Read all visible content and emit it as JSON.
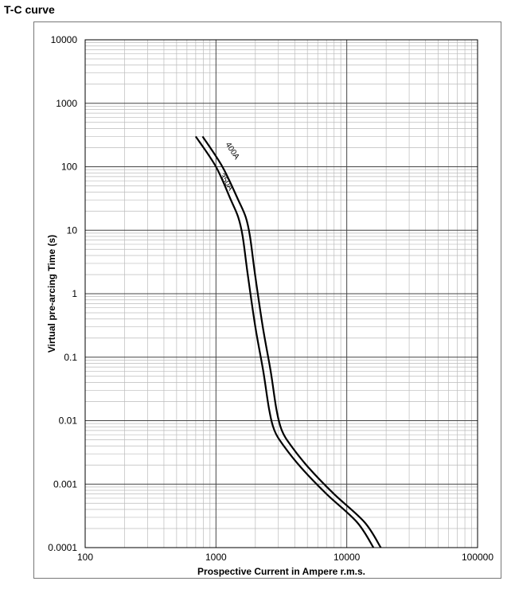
{
  "page": {
    "title": "T-C curve"
  },
  "chart_data": {
    "type": "line",
    "title": "",
    "xlabel": "Prospective Current in Ampere r.m.s.",
    "ylabel": "Virtual pre-arcing Time (s)",
    "xscale": "log",
    "yscale": "log",
    "xlim": [
      100,
      100000
    ],
    "ylim": [
      0.0001,
      10000
    ],
    "xticks": [
      "100",
      "1000",
      "10000",
      "100000"
    ],
    "yticks": [
      "0.0001",
      "0.001",
      "0.01",
      "0.1",
      "1",
      "10",
      "100",
      "1000",
      "10000"
    ],
    "grid": true,
    "legend": "none",
    "series": [
      {
        "name": "350A",
        "points": [
          [
            700,
            300
          ],
          [
            1000,
            100
          ],
          [
            1300,
            30
          ],
          [
            1480,
            16
          ],
          [
            1600,
            8
          ],
          [
            1750,
            2
          ],
          [
            2000,
            0.3
          ],
          [
            2300,
            0.06
          ],
          [
            2550,
            0.015
          ],
          [
            2800,
            0.007
          ],
          [
            3300,
            0.004
          ],
          [
            4500,
            0.0018
          ],
          [
            7000,
            0.0007
          ],
          [
            12000,
            0.00025
          ],
          [
            16000,
            0.0001
          ]
        ]
      },
      {
        "name": "400A",
        "points": [
          [
            790,
            300
          ],
          [
            1120,
            100
          ],
          [
            1480,
            30
          ],
          [
            1690,
            16
          ],
          [
            1820,
            8
          ],
          [
            1990,
            2
          ],
          [
            2280,
            0.3
          ],
          [
            2620,
            0.06
          ],
          [
            2900,
            0.015
          ],
          [
            3190,
            0.007
          ],
          [
            3760,
            0.004
          ],
          [
            5130,
            0.0018
          ],
          [
            7980,
            0.0007
          ],
          [
            13700,
            0.00025
          ],
          [
            18200,
            0.0001
          ]
        ]
      }
    ],
    "annotations": [
      "350A",
      "400A"
    ],
    "colors": {
      "line": "#000000",
      "grid_major": "#444444",
      "grid_minor": "#bbbbbb",
      "text": "#000000"
    }
  }
}
